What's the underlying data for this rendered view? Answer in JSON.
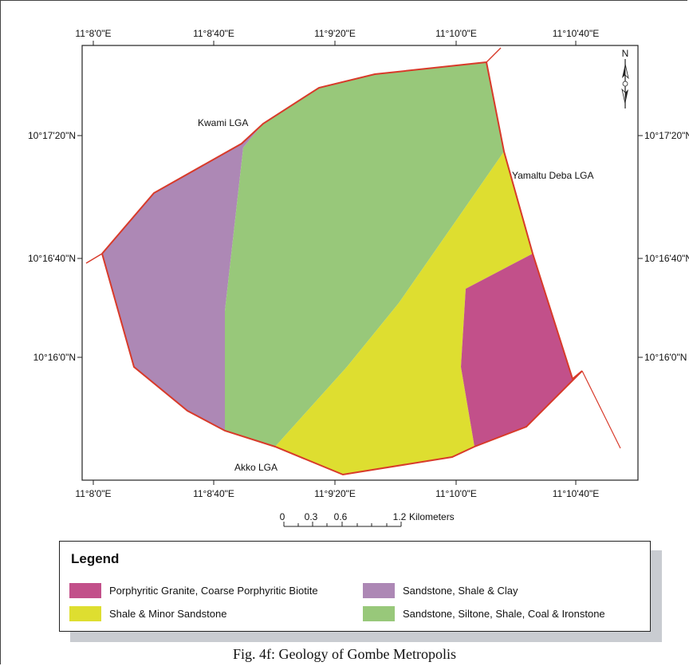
{
  "map": {
    "x_ticks": [
      "11°8'0\"E",
      "11°8'40\"E",
      "11°9'20\"E",
      "11°10'0\"E",
      "11°10'40\"E"
    ],
    "y_ticks": [
      "10°17'20\"N",
      "10°16'40\"N",
      "10°16'0\"N"
    ],
    "north_label": "N",
    "places": {
      "kwami": "Kwami LGA",
      "yamaltu": "Yamaltu Deba LGA",
      "akko": "Akko LGA"
    },
    "scale": {
      "ticks": [
        "0",
        "0.3",
        "0.6",
        "1.2"
      ],
      "unit": "Kilometers"
    }
  },
  "colors": {
    "boundary": "#d83a2a",
    "porphyritic_granite": "#c2508a",
    "sandstone_shale_clay": "#ad88b5",
    "shale_minor_sandstone": "#dede30",
    "sandstone_siltone": "#98c87a"
  },
  "legend": {
    "title": "Legend",
    "items": [
      {
        "label": "Porphyritic Granite, Coarse Porphyritic Biotite",
        "color": "#c2508a"
      },
      {
        "label": "Sandstone, Shale & Clay",
        "color": "#ad88b5"
      },
      {
        "label": "Shale & Minor Sandstone",
        "color": "#dede30"
      },
      {
        "label": "Sandstone, Siltone, Shale, Coal & Ironstone",
        "color": "#98c87a"
      }
    ]
  },
  "caption": "Fig. 4f: Geology of Gombe Metropolis"
}
